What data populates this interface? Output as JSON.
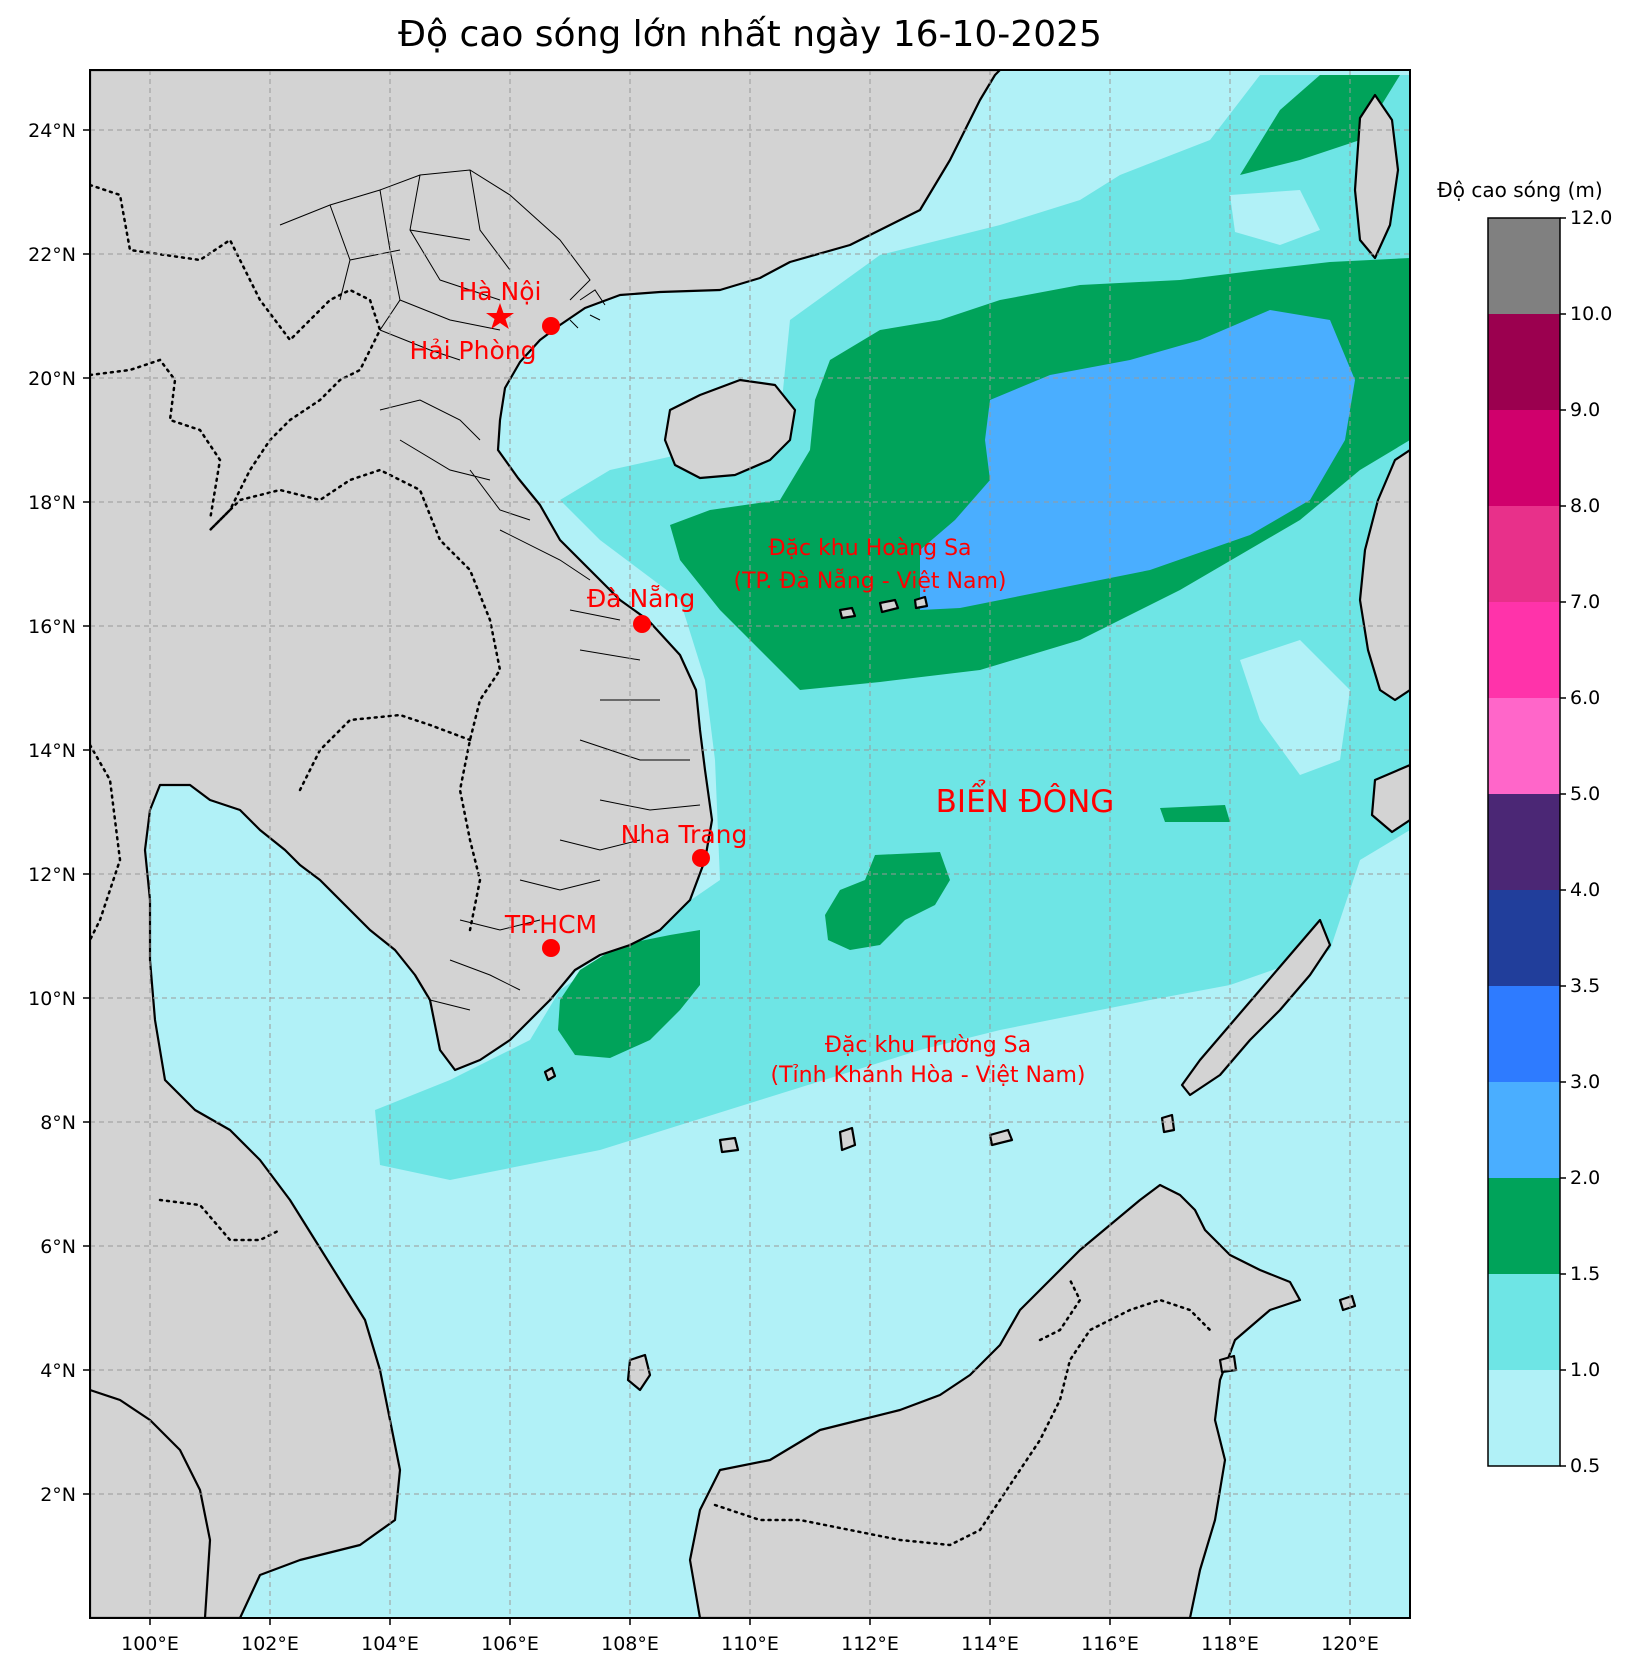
{
  "title": "Độ cao sóng lớn nhất ngày 16-10-2025",
  "colorbar": {
    "title": "Độ cao sóng (m)",
    "levels": [
      "0.5",
      "1.0",
      "1.5",
      "2.0",
      "3.0",
      "3.5",
      "4.0",
      "5.0",
      "6.0",
      "7.0",
      "8.0",
      "9.0",
      "10.0",
      "12.0"
    ],
    "colors": [
      "#b1f1f7",
      "#6ee5e5",
      "#00a35a",
      "#4aaeff",
      "#2e7bff",
      "#213e9b",
      "#4b2775",
      "#ff66c9",
      "#ff33aa",
      "#e8308a",
      "#d0006c",
      "#9b004f",
      "#808080"
    ]
  },
  "axes": {
    "lon_labels": [
      "100°E",
      "102°E",
      "104°E",
      "106°E",
      "108°E",
      "110°E",
      "112°E",
      "114°E",
      "116°E",
      "118°E",
      "120°E"
    ],
    "lat_labels": [
      "2°N",
      "4°N",
      "6°N",
      "8°N",
      "10°N",
      "12°N",
      "14°N",
      "16°N",
      "18°N",
      "20°N",
      "22°N",
      "24°N"
    ]
  },
  "cities": [
    {
      "name": "Hà Nội",
      "marker": "star"
    },
    {
      "name": "Hải Phòng",
      "marker": "dot"
    },
    {
      "name": "Đà Nẵng",
      "marker": "dot"
    },
    {
      "name": "Nha Trang",
      "marker": "dot"
    },
    {
      "name": "TP.HCM",
      "marker": "dot"
    }
  ],
  "regions": {
    "hoang_sa_line1": "Đặc khu Hoàng Sa",
    "hoang_sa_line2": "(TP. Đà Nẵng - Việt Nam)",
    "sea_name": "BIỂN ĐÔNG",
    "truong_sa_line1": "Đặc khu Trường Sa",
    "truong_sa_line2": "(Tỉnh Khánh Hòa - Việt Nam)"
  },
  "colors": {
    "land": "#d3d3d3",
    "label": "#ff0000",
    "marker": "#ff0000"
  }
}
